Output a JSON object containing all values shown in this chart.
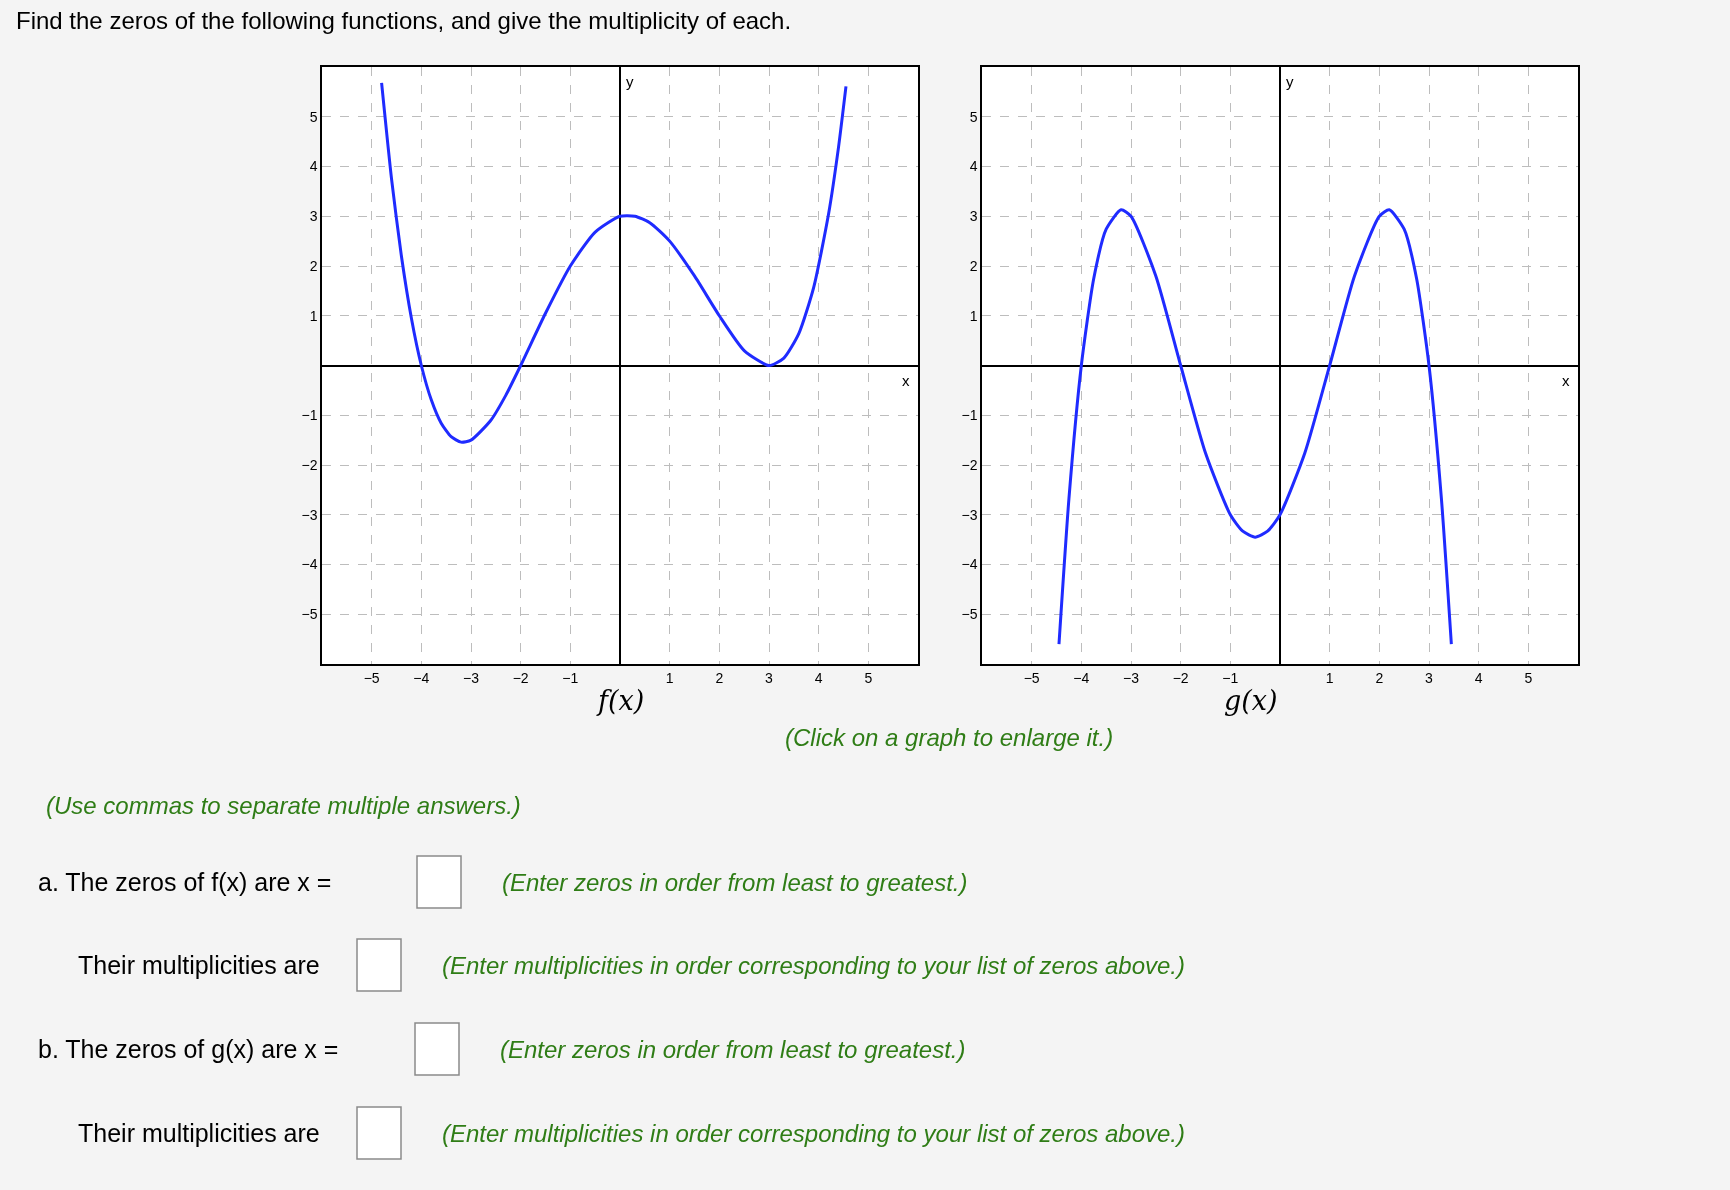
{
  "chart_data": [
    {
      "type": "line",
      "title": "f(x)",
      "xlabel": "x",
      "ylabel": "y",
      "xlim": [
        -6,
        6
      ],
      "ylim": [
        -6,
        6
      ],
      "xticks": [
        -5,
        -4,
        -3,
        -2,
        -1,
        1,
        2,
        3,
        4,
        5
      ],
      "yticks": [
        -5,
        -4,
        -3,
        -2,
        -1,
        1,
        2,
        3,
        4,
        5
      ],
      "grid": true,
      "marker": "none",
      "line_style": "solid",
      "series": [
        {
          "color": "#1f2bff",
          "x": [
            -4.8,
            -4.6,
            -4.4,
            -4.2,
            -4,
            -3.8,
            -3.6,
            -3.4,
            -3.2,
            -3,
            -2.6,
            -2.3,
            -2,
            -1.5,
            -1,
            -0.5,
            0,
            0.3,
            0.6,
            1,
            1.5,
            2,
            2.5,
            3,
            3.3,
            3.6,
            3.9,
            4.2,
            4.4,
            4.55
          ],
          "values": [
            5.68,
            3.75,
            2.19,
            0.95,
            0,
            -0.69,
            -1.16,
            -1.43,
            -1.54,
            -1.5,
            -1.1,
            -0.6,
            0,
            1.05,
            2,
            2.68,
            3,
            3,
            2.87,
            2.5,
            1.8,
            1,
            0.3,
            0,
            0.15,
            0.64,
            1.57,
            3.05,
            4.39,
            5.61
          ]
        }
      ]
    },
    {
      "type": "line",
      "title": "g(x)",
      "xlabel": "x",
      "ylabel": "y",
      "xlim": [
        -6,
        6
      ],
      "ylim": [
        -6,
        6
      ],
      "xticks": [
        -5,
        -4,
        -3,
        -2,
        -1,
        1,
        2,
        3,
        4,
        5
      ],
      "yticks": [
        -5,
        -4,
        -3,
        -2,
        -1,
        1,
        2,
        3,
        4,
        5
      ],
      "grid": true,
      "marker": "none",
      "line_style": "solid",
      "series": [
        {
          "color": "#1f2bff",
          "x": [
            -4.45,
            -4.25,
            -4,
            -3.75,
            -3.5,
            -3.2,
            -3,
            -2.5,
            -2,
            -1.5,
            -1,
            -0.75,
            -0.5,
            -0.25,
            0,
            0.5,
            1,
            1.5,
            2,
            2.2,
            2.5,
            2.75,
            3,
            3.25,
            3.45
          ],
          "values": [
            -5.6,
            -2.68,
            0,
            1.75,
            2.74,
            3.13,
            3,
            1.8,
            0,
            -1.76,
            -3,
            -3.33,
            -3.45,
            -3.33,
            -3,
            -1.76,
            0,
            1.8,
            3,
            3.13,
            2.74,
            1.75,
            0,
            -2.68,
            -5.6
          ]
        }
      ]
    },
    {
      "type": "other",
      "annotations": [
        "Find the zeros of the following functions, and give the multiplicity of each.",
        "(Click on a graph to enlarge it.)",
        "(Use commas to separate multiple answers.)",
        "a. The zeros of f(x) are x =",
        "(Enter zeros in order from least to greatest.)",
        "Their multiplicities are",
        "(Enter multiplicities in order corresponding to your list of zeros above.)",
        "b. The zeros of g(x) are x =",
        "(Enter zeros in order from least to greatest.)",
        "Their multiplicities are",
        "(Enter multiplicities in order corresponding to your list of zeros above.)"
      ]
    }
  ]
}
